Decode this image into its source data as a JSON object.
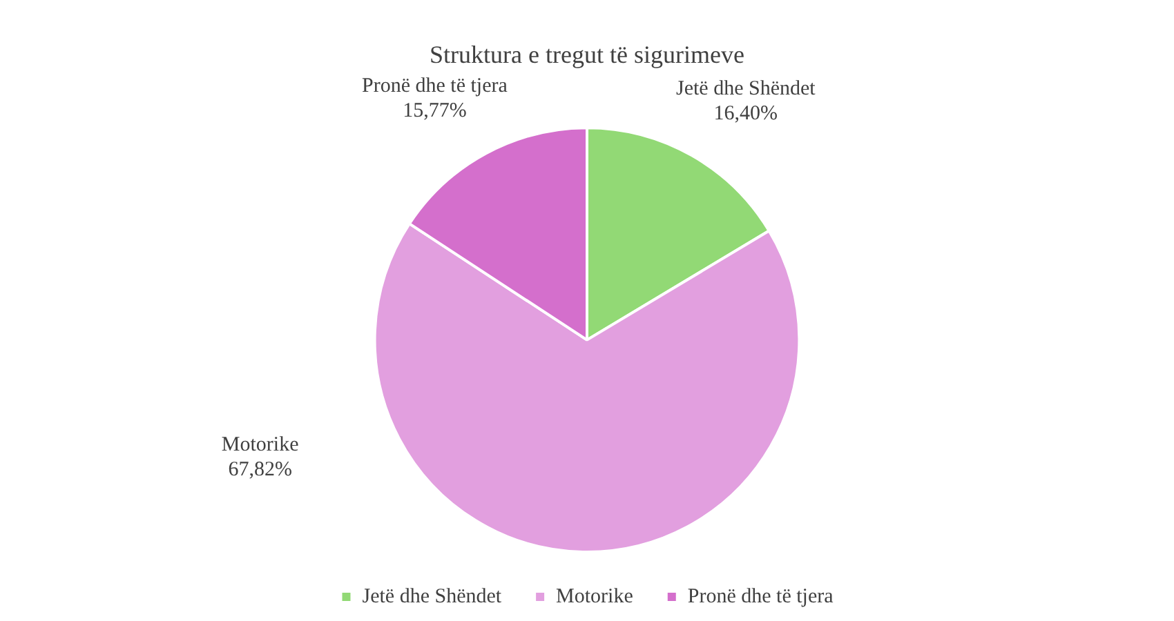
{
  "chart_data": {
    "type": "pie",
    "title": "Struktura e tregut të sigurimeve",
    "categories": [
      "Jetë dhe Shëndet",
      "Motorike",
      "Pronë dhe të tjera"
    ],
    "values": [
      16.4,
      67.82,
      15.77
    ],
    "colors": [
      "#92d975",
      "#e29fdf",
      "#d46fcc"
    ],
    "value_labels": [
      "16,40%",
      "67,82%",
      "15,77%"
    ],
    "legend": "bottom"
  }
}
